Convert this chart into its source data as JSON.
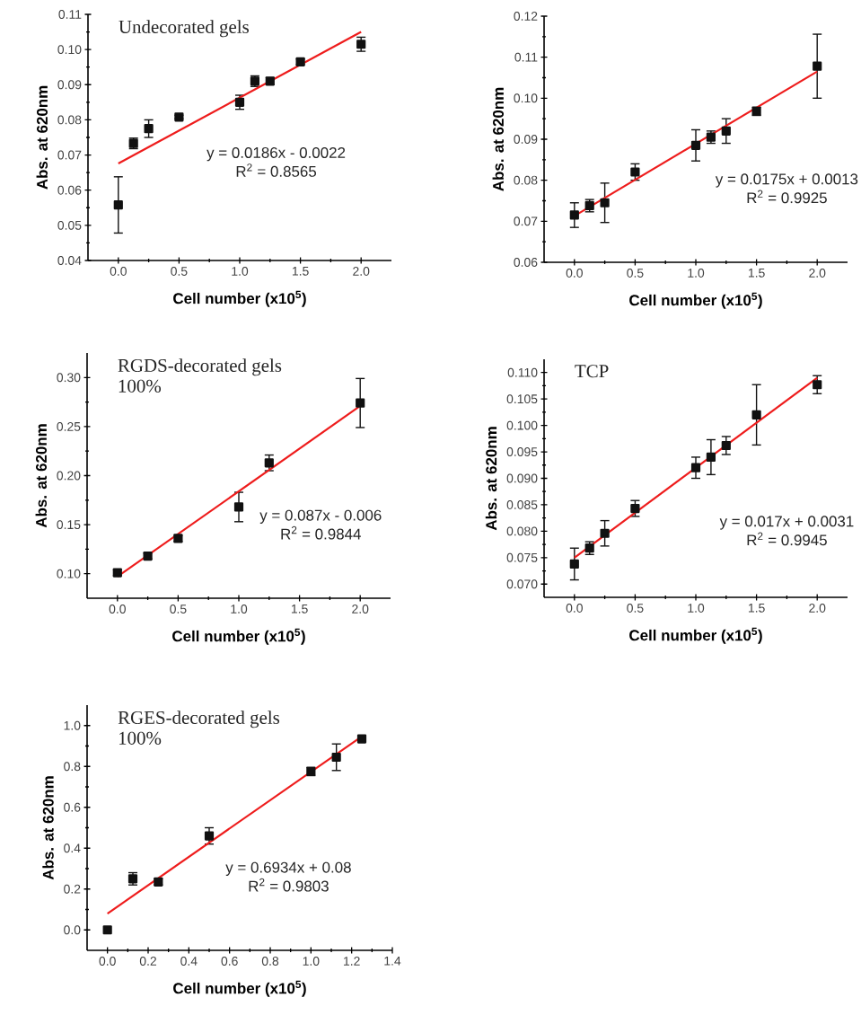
{
  "chart_data": [
    {
      "type": "scatter",
      "title": "Undecorated gels",
      "xlabel": "Cell number (x10$^{5}$)",
      "ylabel": "Abs. at 620nm",
      "xlim": [
        -0.25,
        2.25
      ],
      "xticks": [
        {
          "value": 0,
          "label": "0.0"
        },
        {
          "value": 0.5,
          "label": "0.5"
        },
        {
          "value": 1,
          "label": "1.0"
        },
        {
          "value": 1.5,
          "label": "1.5"
        },
        {
          "value": 2,
          "label": "2.0"
        }
      ],
      "ylim": [
        0.04,
        0.11
      ],
      "yticks": [
        {
          "value": 0.04,
          "label": "0.04"
        },
        {
          "value": 0.05,
          "label": "0.05"
        },
        {
          "value": 0.06,
          "label": "0.06"
        },
        {
          "value": 0.07,
          "label": "0.07"
        },
        {
          "value": 0.08,
          "label": "0.08"
        },
        {
          "value": 0.09,
          "label": "0.09"
        },
        {
          "value": 0.1,
          "label": "0.10"
        },
        {
          "value": 0.11,
          "label": "0.11"
        }
      ],
      "annotations": [
        "y = 0.0186x - 0.0022",
        "R$^{2}$ = 0.8565"
      ],
      "series": [
        {
          "type": "scatter",
          "marker": "square",
          "color": "#111111",
          "x": [
            0,
            0.125,
            0.25,
            0.5,
            1,
            1.125,
            1.25,
            1.5,
            2
          ],
          "values": [
            0.0558,
            0.0733,
            0.0775,
            0.0808,
            0.085,
            0.091,
            0.091,
            0.0965,
            0.1015
          ],
          "errors": [
            0.008,
            0.0015,
            0.0025,
            0.0005,
            0.002,
            0.0015,
            0.001,
            0.0008,
            0.002
          ]
        },
        {
          "type": "line",
          "marker": "none",
          "color": "#ee1c1c",
          "x": [
            0,
            2
          ],
          "values": [
            0.0676,
            0.105
          ]
        }
      ]
    },
    {
      "type": "scatter",
      "xlabel": "Cell number (x10$^{5}$)",
      "ylabel": "Abs. at 620nm",
      "xlim": [
        -0.25,
        2.25
      ],
      "xticks": [
        {
          "value": 0,
          "label": "0.0"
        },
        {
          "value": 0.5,
          "label": "0.5"
        },
        {
          "value": 1,
          "label": "1.0"
        },
        {
          "value": 1.5,
          "label": "1.5"
        },
        {
          "value": 2,
          "label": "2.0"
        }
      ],
      "ylim": [
        0.06,
        0.12
      ],
      "yticks": [
        {
          "value": 0.06,
          "label": "0.06"
        },
        {
          "value": 0.07,
          "label": "0.07"
        },
        {
          "value": 0.08,
          "label": "0.08"
        },
        {
          "value": 0.09,
          "label": "0.09"
        },
        {
          "value": 0.1,
          "label": "0.10"
        },
        {
          "value": 0.11,
          "label": "0.11"
        },
        {
          "value": 0.12,
          "label": "0.12"
        }
      ],
      "annotations": [
        "y = 0.0175x + 0.0013",
        "R$^{2}$ = 0.9925"
      ],
      "series": [
        {
          "type": "scatter",
          "marker": "square",
          "color": "#111111",
          "x": [
            0,
            0.125,
            0.25,
            0.5,
            1,
            1.125,
            1.25,
            1.5,
            2
          ],
          "values": [
            0.0715,
            0.0738,
            0.0745,
            0.082,
            0.0885,
            0.0905,
            0.092,
            0.0968,
            0.1078
          ],
          "errors": [
            0.003,
            0.0015,
            0.0048,
            0.002,
            0.0038,
            0.0015,
            0.003,
            0.001,
            0.0078
          ]
        },
        {
          "type": "line",
          "marker": "none",
          "color": "#ee1c1c",
          "x": [
            0,
            2
          ],
          "values": [
            0.0713,
            0.1065
          ]
        }
      ]
    },
    {
      "type": "scatter",
      "title": "RGDS-decorated gels",
      "subtitle": "100%",
      "xlabel": "Cell number (x10$^{5}$)",
      "ylabel": "Abs. at 620nm",
      "xlim": [
        -0.25,
        2.25
      ],
      "xticks": [
        {
          "value": 0,
          "label": "0.0"
        },
        {
          "value": 0.5,
          "label": "0.5"
        },
        {
          "value": 1,
          "label": "1.0"
        },
        {
          "value": 1.5,
          "label": "1.5"
        },
        {
          "value": 2,
          "label": "2.0"
        }
      ],
      "ylim": [
        0.075,
        0.325
      ],
      "yticks": [
        {
          "value": 0.1,
          "label": "0.10"
        },
        {
          "value": 0.15,
          "label": "0.15"
        },
        {
          "value": 0.2,
          "label": "0.20"
        },
        {
          "value": 0.25,
          "label": "0.25"
        },
        {
          "value": 0.3,
          "label": "0.30"
        }
      ],
      "annotations": [
        "y = 0.087x - 0.006",
        "R$^{2}$ = 0.9844"
      ],
      "series": [
        {
          "type": "scatter",
          "marker": "square",
          "color": "#111111",
          "x": [
            0,
            0.25,
            0.5,
            1,
            1.25,
            2
          ],
          "values": [
            0.101,
            0.118,
            0.136,
            0.168,
            0.213,
            0.274
          ],
          "errors": [
            0.003,
            0.003,
            0.003,
            0.015,
            0.008,
            0.025
          ]
        },
        {
          "type": "line",
          "marker": "none",
          "color": "#ee1c1c",
          "x": [
            0,
            2
          ],
          "values": [
            0.097,
            0.271
          ]
        }
      ]
    },
    {
      "type": "scatter",
      "title": "TCP",
      "xlabel": "Cell number (x10$^{5}$)",
      "ylabel": "Abs. at 620nm",
      "xlim": [
        -0.25,
        2.25
      ],
      "xticks": [
        {
          "value": 0,
          "label": "0.0"
        },
        {
          "value": 0.5,
          "label": "0.5"
        },
        {
          "value": 1,
          "label": "1.0"
        },
        {
          "value": 1.5,
          "label": "1.5"
        },
        {
          "value": 2,
          "label": "2.0"
        }
      ],
      "ylim": [
        0.0675,
        0.1125
      ],
      "yticks": [
        {
          "value": 0.07,
          "label": "0.070"
        },
        {
          "value": 0.075,
          "label": "0.075"
        },
        {
          "value": 0.08,
          "label": "0.080"
        },
        {
          "value": 0.085,
          "label": "0.085"
        },
        {
          "value": 0.09,
          "label": "0.090"
        },
        {
          "value": 0.095,
          "label": "0.095"
        },
        {
          "value": 0.1,
          "label": "0.100"
        },
        {
          "value": 0.105,
          "label": "0.105"
        },
        {
          "value": 0.11,
          "label": "0.110"
        }
      ],
      "annotations": [
        "y = 0.017x + 0.0031",
        "R$^{2}$ = 0.9945"
      ],
      "series": [
        {
          "type": "scatter",
          "marker": "square",
          "color": "#111111",
          "x": [
            0,
            0.125,
            0.25,
            0.5,
            1,
            1.125,
            1.25,
            1.5,
            2
          ],
          "values": [
            0.0738,
            0.0768,
            0.0796,
            0.0843,
            0.092,
            0.094,
            0.0962,
            0.102,
            0.1077
          ],
          "errors": [
            0.003,
            0.0012,
            0.0024,
            0.0015,
            0.002,
            0.0033,
            0.0017,
            0.0057,
            0.0017
          ]
        },
        {
          "type": "line",
          "marker": "none",
          "color": "#ee1c1c",
          "x": [
            0,
            2
          ],
          "values": [
            0.075,
            0.109
          ]
        }
      ]
    },
    {
      "type": "scatter",
      "title": "RGES-decorated gels",
      "subtitle": "100%",
      "xlabel": "Cell number (x10$^{5}$)",
      "ylabel": "Abs. at 620nm",
      "xlim": [
        -0.1,
        1.4
      ],
      "xticks": [
        {
          "value": 0,
          "label": "0.0"
        },
        {
          "value": 0.2,
          "label": "0.2"
        },
        {
          "value": 0.4,
          "label": "0.4"
        },
        {
          "value": 0.6,
          "label": "0.6"
        },
        {
          "value": 0.8,
          "label": "0.8"
        },
        {
          "value": 1,
          "label": "1.0"
        },
        {
          "value": 1.2,
          "label": "1.2"
        },
        {
          "value": 1.4,
          "label": "1.4"
        }
      ],
      "ylim": [
        -0.1,
        1.1
      ],
      "yticks": [
        {
          "value": 0,
          "label": "0.0"
        },
        {
          "value": 0.2,
          "label": "0.2"
        },
        {
          "value": 0.4,
          "label": "0.4"
        },
        {
          "value": 0.6,
          "label": "0.6"
        },
        {
          "value": 0.8,
          "label": "0.8"
        },
        {
          "value": 1,
          "label": "1.0"
        }
      ],
      "annotations": [
        "y = 0.6934x + 0.08",
        "R$^{2}$ = 0.9803"
      ],
      "series": [
        {
          "type": "scatter",
          "marker": "square",
          "color": "#111111",
          "x": [
            0,
            0.125,
            0.25,
            0.5,
            1,
            1.125,
            1.25
          ],
          "values": [
            0.0,
            0.25,
            0.235,
            0.46,
            0.775,
            0.845,
            0.935
          ],
          "errors": [
            null,
            0.03,
            0.015,
            0.04,
            0.02,
            0.065,
            0.01
          ]
        },
        {
          "type": "line",
          "marker": "none",
          "color": "#ee1c1c",
          "x": [
            0,
            1.25
          ],
          "values": [
            0.08,
            0.947
          ]
        }
      ]
    }
  ]
}
